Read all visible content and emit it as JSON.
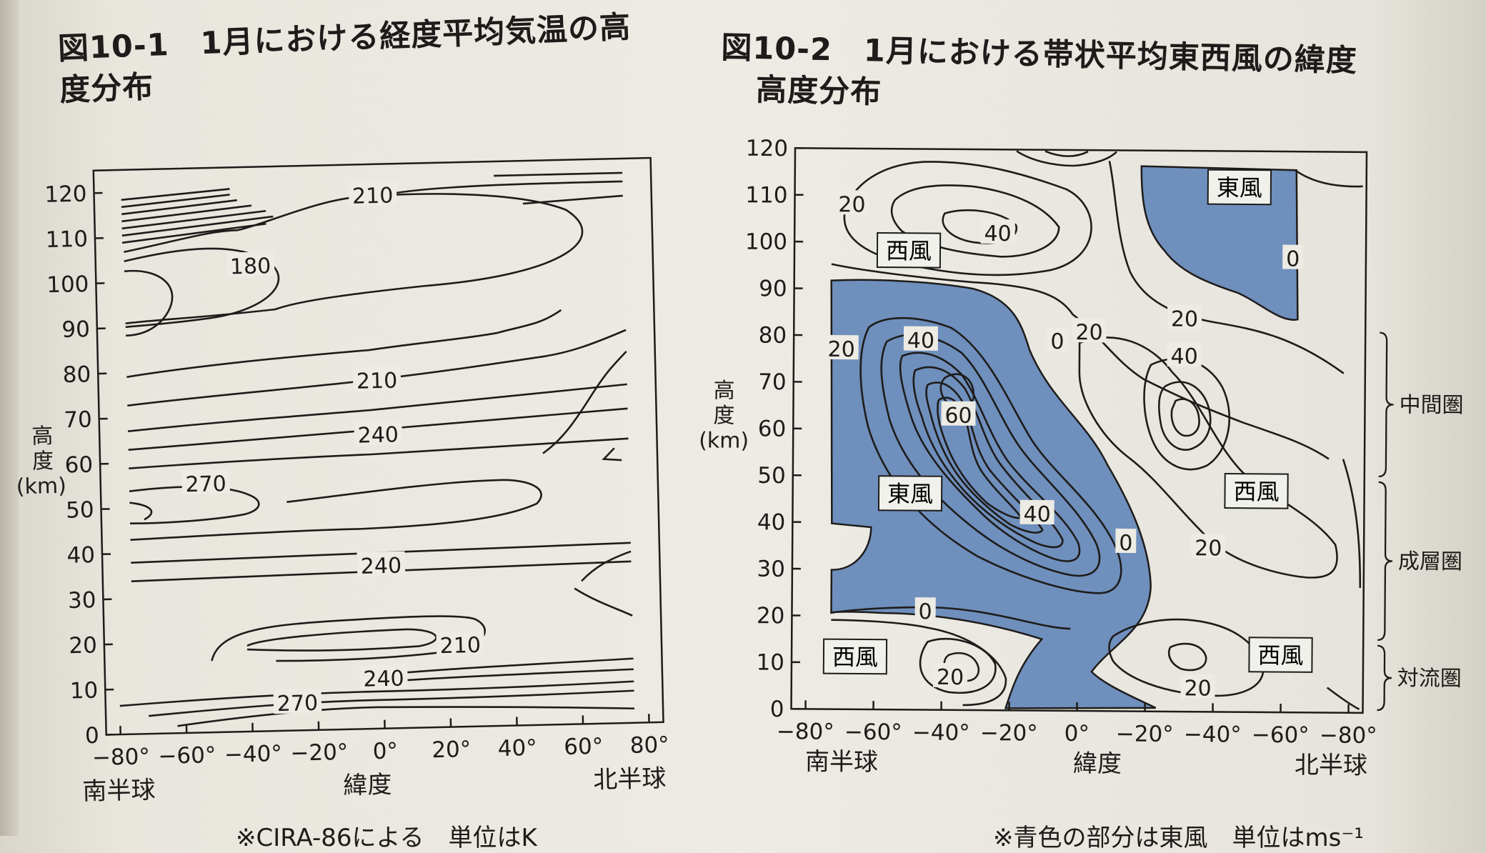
{
  "chart_data": [
    {
      "type": "contour",
      "title": "図10-1　1月における経度平均気温の高度分布",
      "xlabel": "緯度",
      "ylabel": "高度(km)",
      "x_ticks": [
        "−80°",
        "−60°",
        "−40°",
        "−20°",
        "0°",
        "20°",
        "40°",
        "60°",
        "80°"
      ],
      "y_ticks": [
        "0",
        "10",
        "20",
        "30",
        "40",
        "50",
        "60",
        "70",
        "80",
        "90",
        "100",
        "110",
        "120"
      ],
      "xlim": [
        -90,
        90
      ],
      "ylim": [
        0,
        125
      ],
      "hemisphere_labels": [
        "南半球",
        "北半球"
      ],
      "contour_labels": [
        {
          "value": "210",
          "lat": 0,
          "alt": 118
        },
        {
          "value": "180",
          "lat": -40,
          "alt": 103
        },
        {
          "value": "210",
          "lat": 0,
          "alt": 77
        },
        {
          "value": "240",
          "lat": 0,
          "alt": 65
        },
        {
          "value": "270",
          "lat": -56,
          "alt": 55
        },
        {
          "value": "240",
          "lat": 0,
          "alt": 36
        },
        {
          "value": "210",
          "lat": 25,
          "alt": 18
        },
        {
          "value": "240",
          "lat": 0,
          "alt": 11
        },
        {
          "value": "270",
          "lat": -28,
          "alt": 6
        }
      ],
      "units": "K",
      "footnote": "※CIRA-86による　単位はK"
    },
    {
      "type": "contour",
      "title": "図10-2　1月における帯状平均東西風の緯度高度分布",
      "xlabel": "緯度",
      "ylabel": "高度(km)",
      "x_ticks": [
        "−80°",
        "−60°",
        "−40°",
        "−20°",
        "0°",
        "−20°",
        "−40°",
        "−60°",
        "−80°"
      ],
      "y_ticks": [
        "0",
        "10",
        "20",
        "30",
        "40",
        "50",
        "60",
        "70",
        "80",
        "90",
        "100",
        "110",
        "120"
      ],
      "xlim": [
        -90,
        90
      ],
      "ylim": [
        0,
        120
      ],
      "hemisphere_labels": [
        "南半球",
        "北半球"
      ],
      "contour_labels": [
        {
          "value": "20",
          "lat": -72,
          "alt": 108
        },
        {
          "value": "40",
          "lat": -26,
          "alt": 102
        },
        {
          "value": "0",
          "lat": 67,
          "alt": 97
        },
        {
          "value": "20",
          "lat": 33,
          "alt": 84
        },
        {
          "value": "20",
          "lat": -75,
          "alt": 77
        },
        {
          "value": "40",
          "lat": -50,
          "alt": 79
        },
        {
          "value": "0",
          "lat": -7,
          "alt": 79
        },
        {
          "value": "20",
          "lat": 3,
          "alt": 81
        },
        {
          "value": "40",
          "lat": 33,
          "alt": 76
        },
        {
          "value": "60",
          "lat": -38,
          "alt": 63
        },
        {
          "value": "40",
          "lat": -13,
          "alt": 42
        },
        {
          "value": "0",
          "lat": 15,
          "alt": 36
        },
        {
          "value": "20",
          "lat": 41,
          "alt": 35
        },
        {
          "value": "0",
          "lat": -48,
          "alt": 21
        },
        {
          "value": "20",
          "lat": -40,
          "alt": 7
        },
        {
          "value": "20",
          "lat": 38,
          "alt": 5
        }
      ],
      "region_labels": [
        {
          "text": "東風",
          "lat": 50,
          "alt": 112
        },
        {
          "text": "西風",
          "lat": -54,
          "alt": 98
        },
        {
          "text": "東風",
          "lat": -53,
          "alt": 46
        },
        {
          "text": "西風",
          "lat": 56,
          "alt": 47
        },
        {
          "text": "西風",
          "lat": -70,
          "alt": 11
        },
        {
          "text": "西風",
          "lat": 64,
          "alt": 12
        }
      ],
      "layers": [
        {
          "name": "中間圏",
          "alt_range": [
            50,
            82
          ]
        },
        {
          "name": "成層圏",
          "alt_range": [
            15,
            50
          ]
        },
        {
          "name": "対流圏",
          "alt_range": [
            0,
            15
          ]
        }
      ],
      "shading": "easterly (blue)",
      "units": "ms⁻¹",
      "footnote": "※青色の部分は東風　単位はms⁻¹"
    }
  ],
  "fig1": {
    "title": "図10-1　1月における経度平均気温の高度分布",
    "ylabel_chars": [
      "高",
      "度"
    ],
    "yunit": "(km)",
    "south": "南半球",
    "xlabel": "緯度",
    "north": "北半球",
    "footnote": "※CIRA-86による　単位はK"
  },
  "fig2": {
    "title_line1": "図10-2　1月における帯状平均東西風の緯度",
    "title_line2": "高度分布",
    "ylabel_chars": [
      "高",
      "度"
    ],
    "yunit": "(km)",
    "south": "南半球",
    "xlabel": "緯度",
    "north": "北半球",
    "footnote": "※青色の部分は東風　単位はms⁻¹"
  },
  "colors": {
    "easterly_fill": "#6f8fbd",
    "ink": "#1e1c1a",
    "paper": "#ecebe4"
  }
}
